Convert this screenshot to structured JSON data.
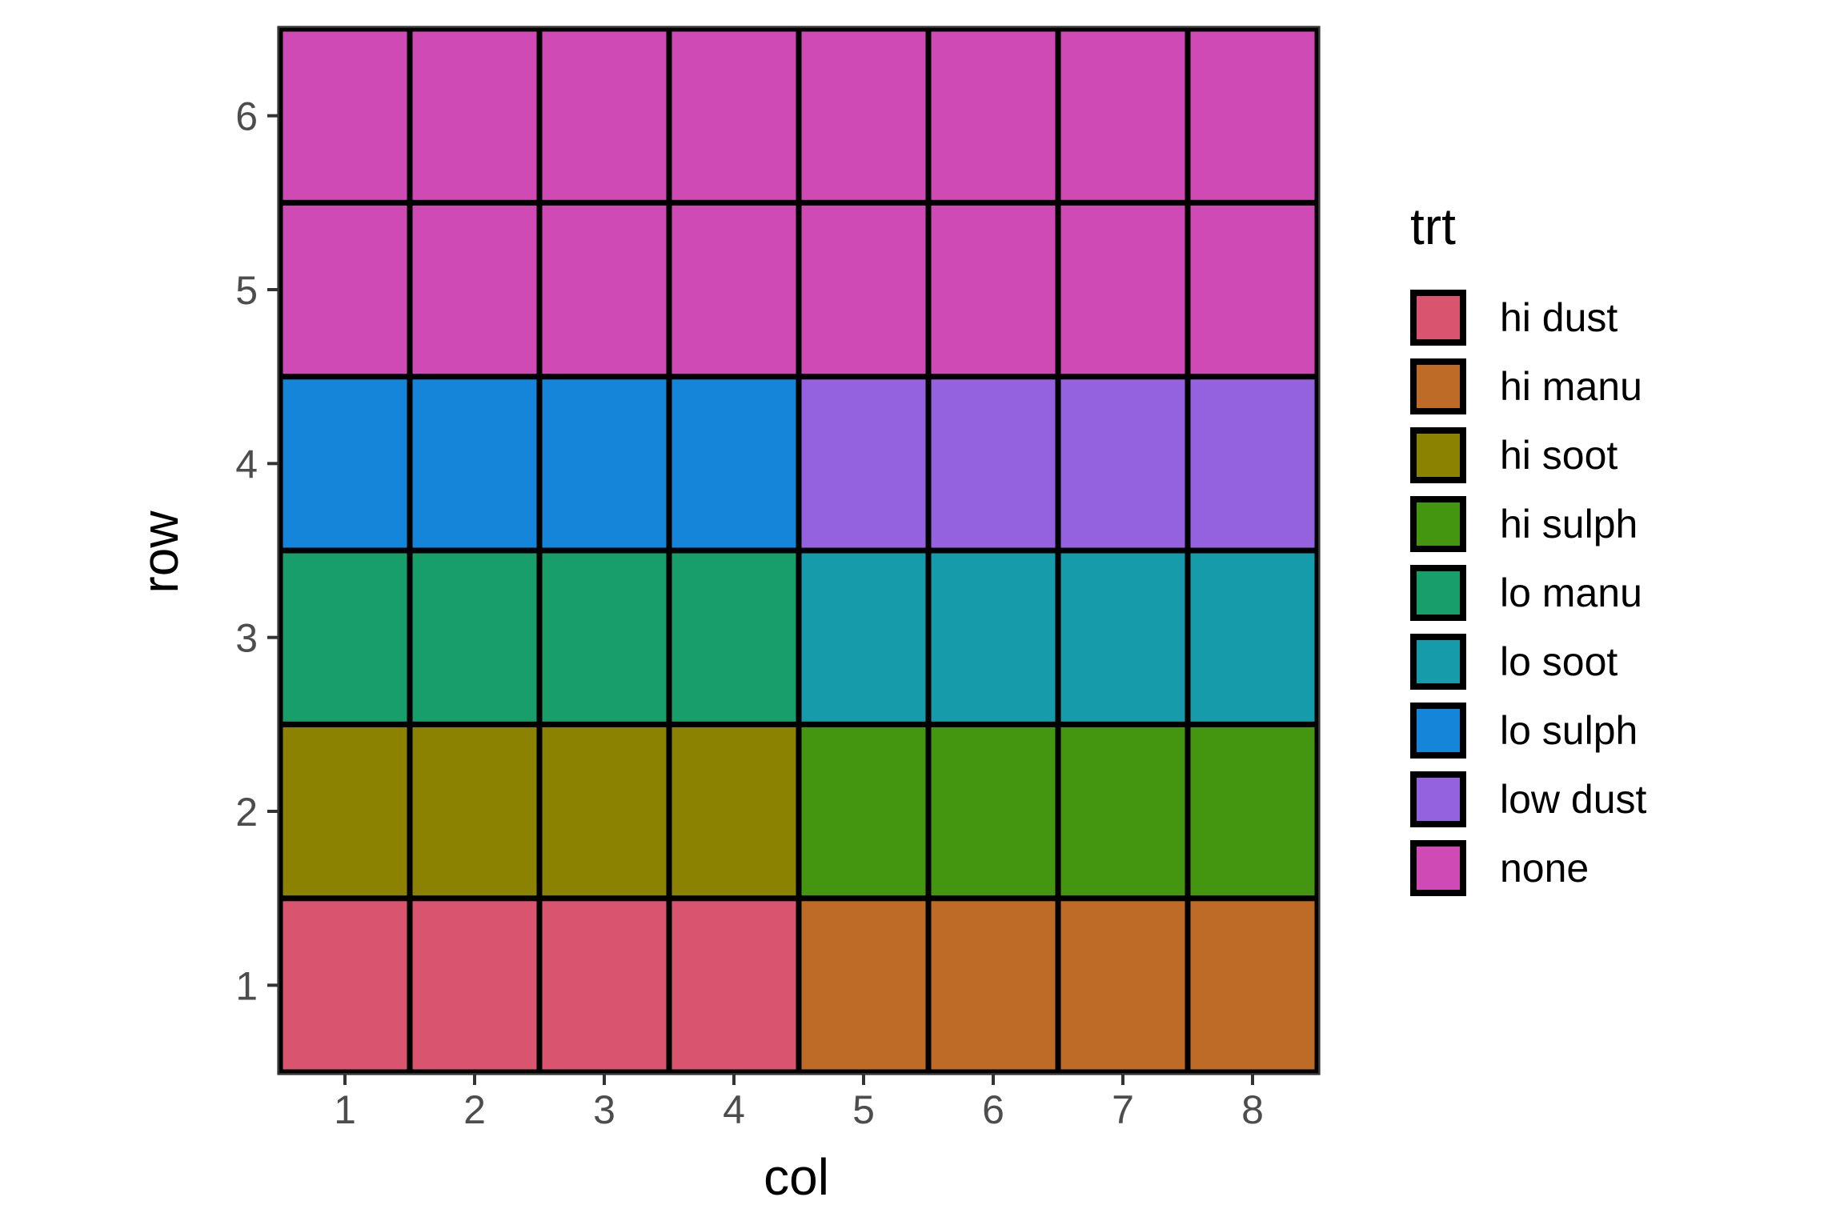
{
  "chart_data": {
    "type": "heatmap",
    "xlabel": "col",
    "ylabel": "row",
    "x_categories": [
      "1",
      "2",
      "3",
      "4",
      "5",
      "6",
      "7",
      "8"
    ],
    "y_categories": [
      "1",
      "2",
      "3",
      "4",
      "5",
      "6"
    ],
    "xlim": [
      0.5,
      8.5
    ],
    "ylim": [
      0.5,
      6.5
    ],
    "grid": true,
    "legend_position": "right",
    "legend": {
      "title": "trt",
      "entries": [
        {
          "label": "hi dust",
          "color": "#D9546F"
        },
        {
          "label": "hi manu",
          "color": "#BD6B26"
        },
        {
          "label": "hi soot",
          "color": "#8A8200"
        },
        {
          "label": "hi sulph",
          "color": "#449611"
        },
        {
          "label": "lo manu",
          "color": "#179E6A"
        },
        {
          "label": "lo soot",
          "color": "#159BAA"
        },
        {
          "label": "lo sulph",
          "color": "#1485D8"
        },
        {
          "label": "low dust",
          "color": "#9562DF"
        },
        {
          "label": "none",
          "color": "#CF4AB5"
        }
      ]
    },
    "cells": [
      {
        "row": 1,
        "values": [
          "hi dust",
          "hi dust",
          "hi dust",
          "hi dust",
          "hi manu",
          "hi manu",
          "hi manu",
          "hi manu"
        ]
      },
      {
        "row": 2,
        "values": [
          "hi soot",
          "hi soot",
          "hi soot",
          "hi soot",
          "hi sulph",
          "hi sulph",
          "hi sulph",
          "hi sulph"
        ]
      },
      {
        "row": 3,
        "values": [
          "lo manu",
          "lo manu",
          "lo manu",
          "lo manu",
          "lo soot",
          "lo soot",
          "lo soot",
          "lo soot"
        ]
      },
      {
        "row": 4,
        "values": [
          "lo sulph",
          "lo sulph",
          "lo sulph",
          "lo sulph",
          "low dust",
          "low dust",
          "low dust",
          "low dust"
        ]
      },
      {
        "row": 5,
        "values": [
          "none",
          "none",
          "none",
          "none",
          "none",
          "none",
          "none",
          "none"
        ]
      },
      {
        "row": 6,
        "values": [
          "none",
          "none",
          "none",
          "none",
          "none",
          "none",
          "none",
          "none"
        ]
      }
    ]
  }
}
